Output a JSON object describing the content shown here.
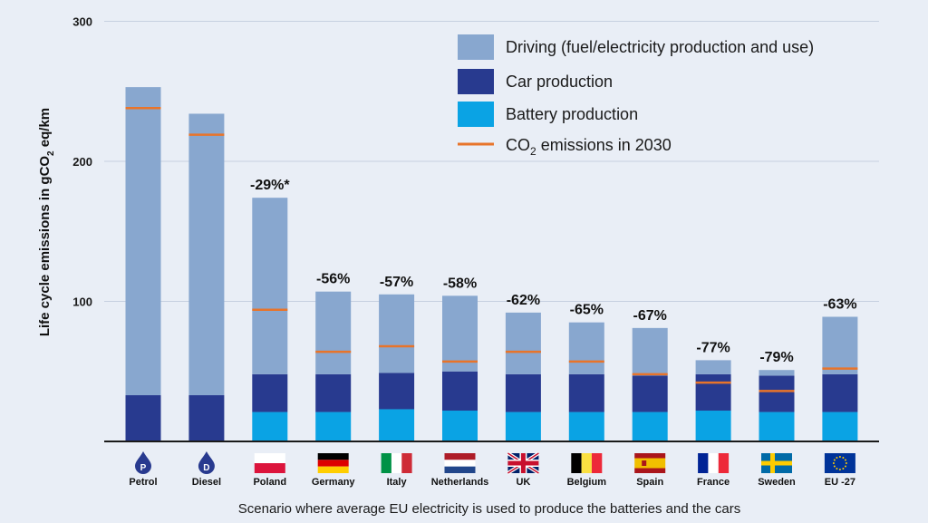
{
  "chart_data": {
    "type": "bar",
    "stacked": true,
    "ylabel_parts": [
      "Life  cycle emissions in gCO",
      "2",
      " eq/km"
    ],
    "xlabel": "Scenario where  average EU electricity is used to produce the batteries and the cars",
    "ylim": [
      0,
      300
    ],
    "yticks": [
      100,
      200,
      300
    ],
    "categories": [
      "Petrol",
      "Diesel",
      "Poland",
      "Germany",
      "Italy",
      "Netherlands",
      "UK",
      "Belgium",
      "Spain",
      "France",
      "Sweden",
      "EU -27"
    ],
    "icons": [
      "petrol-pump-icon",
      "diesel-drop-icon",
      "poland-flag-icon",
      "germany-flag-icon",
      "italy-flag-icon",
      "netherlands-flag-icon",
      "uk-flag-icon",
      "belgium-flag-icon",
      "spain-flag-icon",
      "france-flag-icon",
      "sweden-flag-icon",
      "eu-flag-icon"
    ],
    "icon_text": {
      "petrol": "P",
      "diesel": "D"
    },
    "percent_labels": [
      "",
      "",
      "-29%*",
      "-56%",
      "-57%",
      "-58%",
      "-62%",
      "-65%",
      "-67%",
      "-77%",
      "-79%",
      "-63%"
    ],
    "series": [
      {
        "name": "Battery production",
        "color": "#0aa3e4",
        "values": [
          0,
          0,
          21,
          21,
          23,
          22,
          21,
          21,
          21,
          22,
          21,
          21
        ]
      },
      {
        "name": "Car production",
        "color": "#283a8f",
        "values": [
          33,
          33,
          27,
          27,
          26,
          28,
          27,
          27,
          26,
          26,
          26,
          27
        ]
      },
      {
        "name": "Driving (fuel/electricity production and use)",
        "color": "#88a7cf",
        "values": [
          220,
          201,
          126,
          59,
          56,
          54,
          44,
          37,
          34,
          10,
          4,
          41
        ]
      }
    ],
    "co2_2030": {
      "name_parts": [
        "CO",
        "2",
        " emissions in 2030"
      ],
      "color": "#e8742a",
      "values": [
        238,
        219,
        94,
        64,
        68,
        57,
        64,
        57,
        48,
        42,
        36,
        52
      ]
    },
    "legend": {
      "driving": "Driving (fuel/electricity production and use)",
      "car": "Car production",
      "battery": "Battery production"
    }
  }
}
